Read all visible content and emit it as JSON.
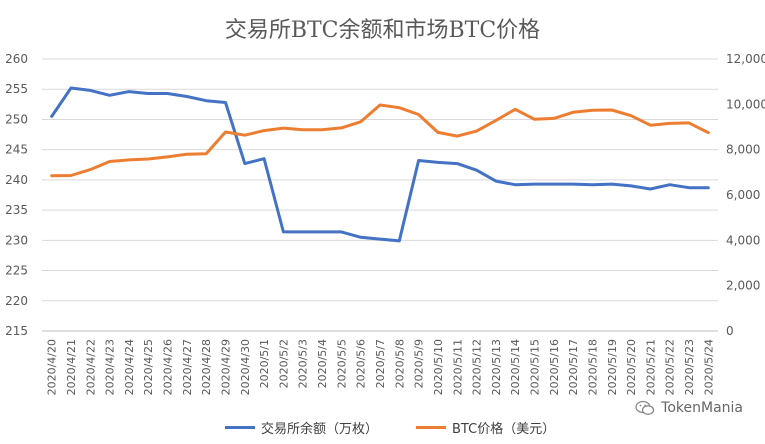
{
  "chart_data": {
    "type": "line",
    "title": "交易所BTC余额和市场BTC价格",
    "categories": [
      "2020/4/20",
      "2020/4/21",
      "2020/4/22",
      "2020/4/23",
      "2020/4/24",
      "2020/4/25",
      "2020/4/26",
      "2020/4/27",
      "2020/4/28",
      "2020/4/29",
      "2020/4/30",
      "2020/5/1",
      "2020/5/2",
      "2020/5/3",
      "2020/5/4",
      "2020/5/5",
      "2020/5/6",
      "2020/5/7",
      "2020/5/8",
      "2020/5/9",
      "2020/5/10",
      "2020/5/11",
      "2020/5/12",
      "2020/5/13",
      "2020/5/14",
      "2020/5/15",
      "2020/5/16",
      "2020/5/17",
      "2020/5/18",
      "2020/5/19",
      "2020/5/20",
      "2020/5/21",
      "2020/5/22",
      "2020/5/23",
      "2020/5/24"
    ],
    "series": [
      {
        "name": "交易所余额（万枚）",
        "axis": "left",
        "color": "#4472C4",
        "values": [
          250.5,
          255.2,
          254.8,
          254.0,
          254.6,
          254.3,
          254.3,
          253.8,
          253.1,
          252.8,
          242.7,
          243.5,
          231.4,
          231.4,
          231.4,
          231.4,
          230.5,
          230.2,
          229.9,
          243.2,
          242.9,
          242.7,
          241.6,
          239.8,
          239.2,
          239.3,
          239.3,
          239.3,
          239.2,
          239.3,
          239.0,
          238.5,
          239.2,
          238.7,
          238.7
        ]
      },
      {
        "name": "BTC价格（美元）",
        "axis": "right",
        "color": "#ED7D31",
        "values": [
          6850,
          6860,
          7120,
          7480,
          7550,
          7590,
          7680,
          7800,
          7820,
          8780,
          8640,
          8840,
          8950,
          8880,
          8880,
          8960,
          9230,
          9970,
          9850,
          9550,
          8760,
          8600,
          8820,
          9290,
          9780,
          9340,
          9380,
          9650,
          9740,
          9750,
          9500,
          9080,
          9160,
          9180,
          8750
        ]
      }
    ],
    "y_left": {
      "min": 215,
      "max": 260,
      "step": 5,
      "tick_labels": [
        "215",
        "220",
        "225",
        "230",
        "235",
        "240",
        "245",
        "250",
        "255",
        "260"
      ]
    },
    "y_right": {
      "min": 0,
      "max": 12000,
      "step": 2000,
      "tick_labels": [
        "0",
        "2,000",
        "4,000",
        "6,000",
        "8,000",
        "10,000",
        "12,000"
      ]
    },
    "grid": true,
    "legend_position": "bottom"
  },
  "watermark": {
    "text": "TokenMania",
    "icon": "wechat-icon"
  }
}
